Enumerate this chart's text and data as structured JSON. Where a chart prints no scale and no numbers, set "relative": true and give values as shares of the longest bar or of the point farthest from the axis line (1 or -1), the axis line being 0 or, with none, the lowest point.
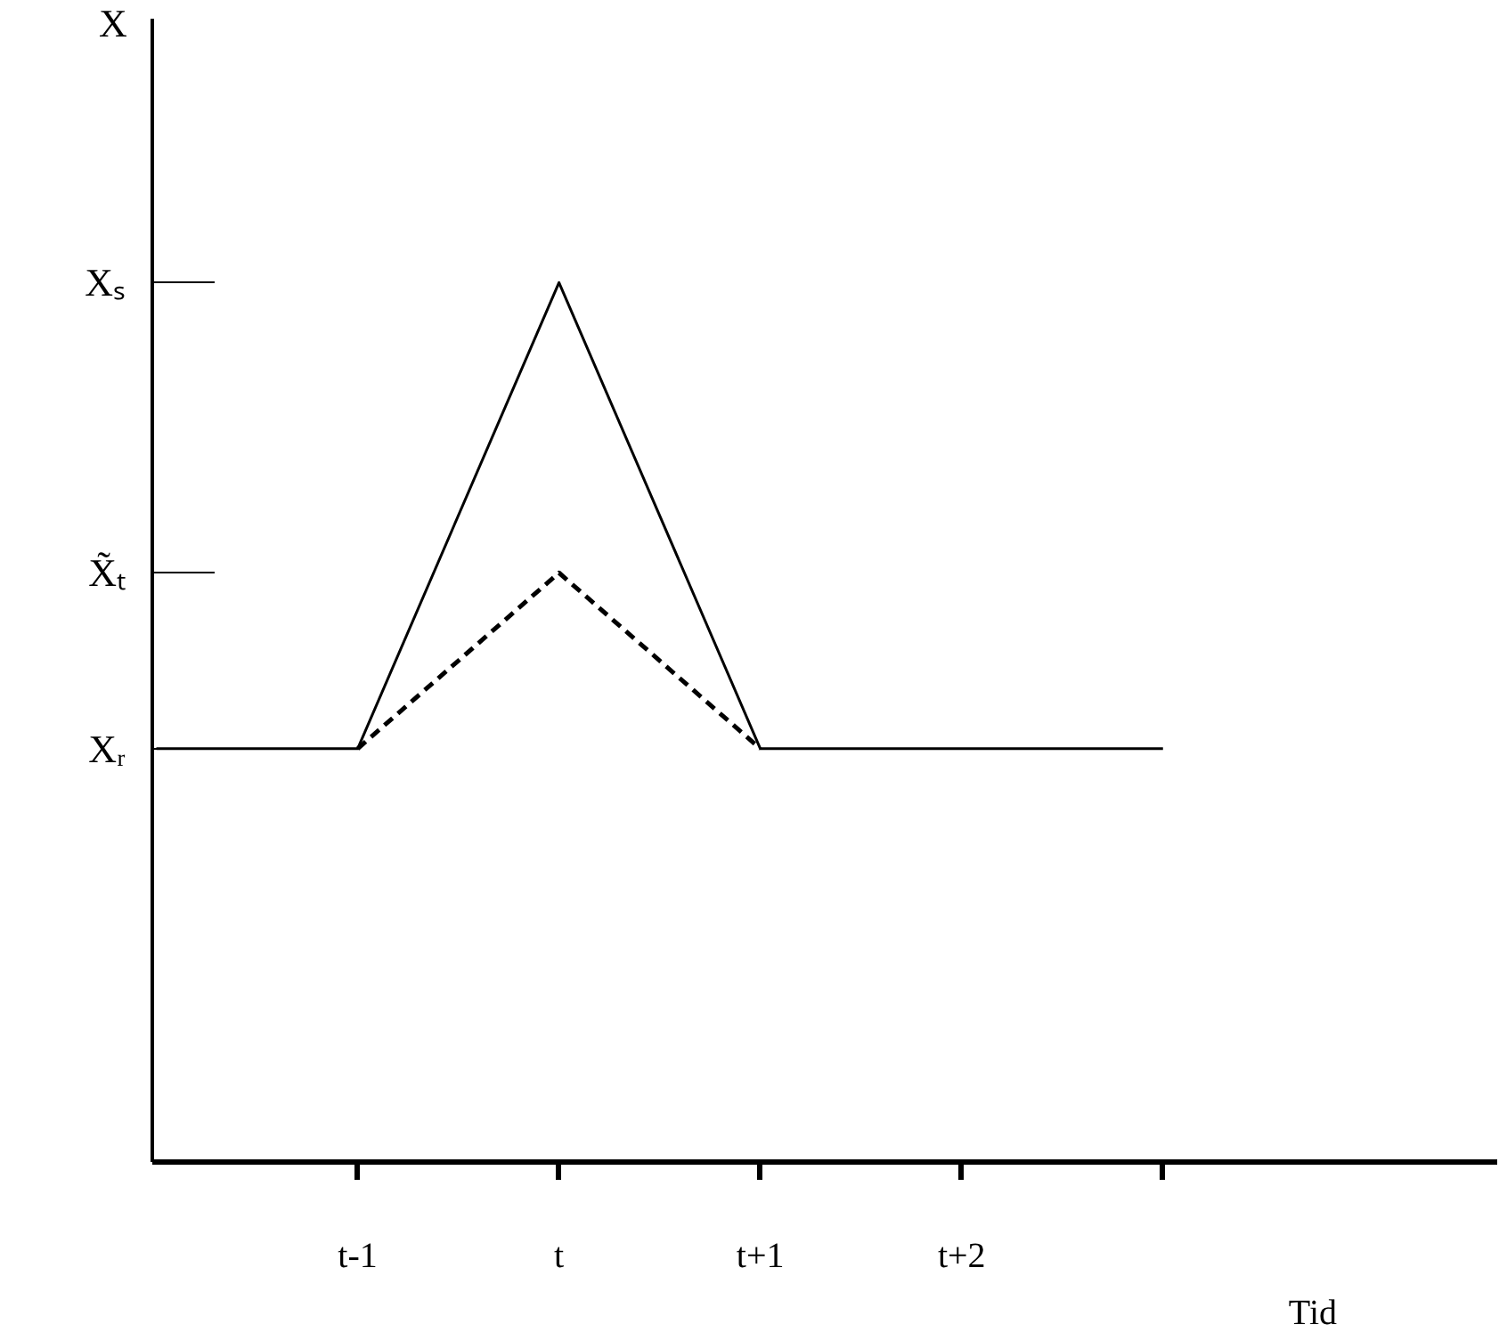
{
  "chart_data": {
    "type": "line",
    "xlabel": "Tid",
    "relative": true,
    "categories": [
      null,
      "t-1",
      "t",
      "t+1",
      "t+2",
      null
    ],
    "series": [
      {
        "color": "#000000",
        "line_style": "solid",
        "values": [
          0.47,
          0.47,
          1,
          0.47,
          0.47,
          0.47
        ]
      },
      {
        "color": "#000000",
        "line_style": "dashed",
        "values": [
          null,
          0.47,
          0.67,
          0.47,
          null,
          null
        ]
      }
    ],
    "annotations": [
      "X",
      "Xᵣ",
      "X̃ₜ",
      "Xₛ"
    ],
    "marker": "none"
  }
}
